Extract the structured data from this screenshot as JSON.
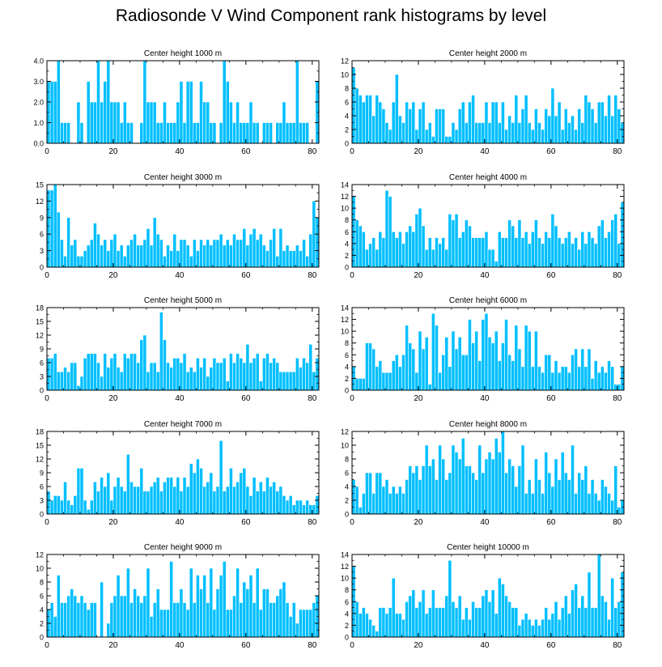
{
  "title": "Radiosonde V Wind Component rank histograms by level",
  "bar_color": "#00bfff",
  "chart_data": [
    {
      "type": "bar",
      "title": "Center height 1000 m",
      "xlabel": "",
      "ylabel": "",
      "xlim": [
        0,
        82
      ],
      "ylim": [
        0,
        4.0
      ],
      "xticks": [
        0,
        20,
        40,
        60,
        80
      ],
      "yticks": [
        0,
        1,
        2,
        3,
        4
      ],
      "yticklabels": [
        "0.0",
        "1.0",
        "2.0",
        "3.0",
        "4.0"
      ],
      "values": [
        3,
        3,
        3,
        4,
        1,
        1,
        1,
        0,
        0,
        2,
        1,
        0,
        3,
        2,
        2,
        4,
        2,
        3,
        4,
        2,
        2,
        2,
        1,
        2,
        1,
        1,
        0,
        0,
        1,
        4,
        2,
        2,
        2,
        1,
        1,
        2,
        1,
        1,
        1,
        2,
        3,
        1,
        3,
        3,
        1,
        1,
        3,
        2,
        2,
        1,
        1,
        0,
        1,
        4,
        3,
        2,
        1,
        2,
        1,
        1,
        1,
        2,
        1,
        1,
        0,
        1,
        1,
        1,
        0,
        1,
        1,
        2,
        1,
        1,
        1,
        4,
        1,
        1,
        1,
        0,
        0,
        3
      ]
    },
    {
      "type": "bar",
      "title": "Center height 2000 m",
      "xlabel": "",
      "ylabel": "",
      "xlim": [
        0,
        82
      ],
      "ylim": [
        0,
        12
      ],
      "xticks": [
        0,
        20,
        40,
        60,
        80
      ],
      "yticks": [
        0,
        2,
        4,
        6,
        8,
        10,
        12
      ],
      "yticklabels": [
        "0",
        "2",
        "4",
        "6",
        "8",
        "10",
        "12"
      ],
      "values": [
        11,
        8,
        7,
        6,
        7,
        7,
        4,
        7,
        6,
        5,
        3,
        2,
        6,
        10,
        4,
        3,
        6,
        5,
        6,
        2,
        5,
        6,
        2,
        3,
        1,
        5,
        5,
        5,
        1,
        1,
        3,
        2,
        5,
        6,
        3,
        6,
        7,
        3,
        3,
        3,
        6,
        3,
        6,
        6,
        3,
        6,
        2,
        4,
        3,
        7,
        3,
        5,
        7,
        3,
        2,
        5,
        3,
        2,
        5,
        4,
        8,
        4,
        6,
        2,
        5,
        3,
        4,
        2,
        5,
        3,
        7,
        6,
        5,
        3,
        6,
        6,
        4,
        7,
        4,
        7,
        5,
        3
      ]
    },
    {
      "type": "bar",
      "title": "Center height 3000 m",
      "xlabel": "",
      "ylabel": "",
      "xlim": [
        0,
        82
      ],
      "ylim": [
        0,
        15
      ],
      "xticks": [
        0,
        20,
        40,
        60,
        80
      ],
      "yticks": [
        0,
        3,
        6,
        9,
        12,
        15
      ],
      "yticklabels": [
        "0",
        "3",
        "6",
        "9",
        "12",
        "15"
      ],
      "values": [
        14,
        14,
        15,
        10,
        5,
        2,
        9,
        4,
        5,
        2,
        2,
        3,
        4,
        5,
        8,
        6,
        4,
        5,
        3,
        5,
        6,
        3,
        4,
        2,
        4,
        5,
        6,
        4,
        4,
        5,
        7,
        4,
        9,
        6,
        5,
        2,
        4,
        3,
        6,
        3,
        5,
        5,
        4,
        2,
        5,
        3,
        5,
        4,
        5,
        4,
        5,
        5,
        6,
        4,
        5,
        4,
        6,
        5,
        5,
        7,
        4,
        6,
        7,
        5,
        6,
        4,
        3,
        5,
        7,
        2,
        7,
        3,
        4,
        3,
        3,
        4,
        3,
        5,
        2,
        6,
        12,
        9
      ]
    },
    {
      "type": "bar",
      "title": "Center height 4000 m",
      "xlabel": "",
      "ylabel": "",
      "xlim": [
        0,
        82
      ],
      "ylim": [
        0,
        14
      ],
      "xticks": [
        0,
        20,
        40,
        60,
        80
      ],
      "yticks": [
        0,
        2,
        4,
        6,
        8,
        10,
        12,
        14
      ],
      "yticklabels": [
        "0",
        "2",
        "4",
        "6",
        "8",
        "10",
        "12",
        "14"
      ],
      "values": [
        12,
        8,
        7,
        6,
        3,
        4,
        5,
        3,
        6,
        5,
        13,
        12,
        6,
        5,
        6,
        4,
        6,
        7,
        6,
        9,
        10,
        7,
        3,
        5,
        3,
        5,
        4,
        5,
        3,
        9,
        8,
        9,
        5,
        6,
        8,
        7,
        5,
        5,
        5,
        5,
        6,
        3,
        3,
        1,
        6,
        5,
        5,
        8,
        7,
        5,
        8,
        5,
        6,
        4,
        6,
        8,
        5,
        4,
        6,
        5,
        9,
        7,
        5,
        4,
        5,
        6,
        4,
        5,
        3,
        6,
        4,
        6,
        5,
        4,
        7,
        8,
        5,
        6,
        8,
        9,
        4,
        11
      ]
    },
    {
      "type": "bar",
      "title": "Center height 5000 m",
      "xlabel": "",
      "ylabel": "",
      "xlim": [
        0,
        82
      ],
      "ylim": [
        0,
        18
      ],
      "xticks": [
        0,
        20,
        40,
        60,
        80
      ],
      "yticks": [
        0,
        3,
        6,
        9,
        12,
        15,
        18
      ],
      "yticklabels": [
        "0",
        "3",
        "6",
        "9",
        "12",
        "15",
        "18"
      ],
      "values": [
        7,
        7,
        8,
        4,
        4,
        5,
        4,
        6,
        6,
        1,
        3,
        7,
        8,
        8,
        8,
        6,
        3,
        8,
        5,
        7,
        8,
        5,
        4,
        8,
        7,
        8,
        8,
        6,
        11,
        12,
        4,
        6,
        6,
        4,
        17,
        11,
        6,
        5,
        7,
        7,
        6,
        8,
        4,
        5,
        4,
        7,
        5,
        7,
        3,
        5,
        7,
        6,
        6,
        7,
        2,
        8,
        6,
        8,
        7,
        6,
        10,
        6,
        7,
        8,
        2,
        7,
        8,
        6,
        7,
        6,
        4,
        4,
        4,
        4,
        4,
        7,
        5,
        7,
        6,
        10,
        4,
        7
      ]
    },
    {
      "type": "bar",
      "title": "Center height 6000 m",
      "xlabel": "",
      "ylabel": "",
      "xlim": [
        0,
        82
      ],
      "ylim": [
        0,
        14
      ],
      "xticks": [
        0,
        20,
        40,
        60,
        80
      ],
      "yticks": [
        0,
        2,
        4,
        6,
        8,
        10,
        12,
        14
      ],
      "yticklabels": [
        "0",
        "2",
        "4",
        "6",
        "8",
        "10",
        "12",
        "14"
      ],
      "values": [
        4,
        2,
        2,
        2,
        8,
        8,
        7,
        4,
        5,
        3,
        3,
        3,
        5,
        6,
        4,
        6,
        11,
        8,
        7,
        3,
        10,
        7,
        9,
        1,
        13,
        11,
        3,
        6,
        9,
        4,
        10,
        7,
        9,
        6,
        6,
        12,
        8,
        10,
        5,
        12,
        13,
        9,
        8,
        10,
        5,
        8,
        12,
        6,
        5,
        11,
        7,
        4,
        11,
        10,
        4,
        10,
        4,
        3,
        6,
        6,
        3,
        5,
        3,
        4,
        4,
        3,
        6,
        7,
        4,
        7,
        4,
        7,
        2,
        5,
        3,
        4,
        3,
        5,
        4,
        1,
        1,
        4
      ]
    },
    {
      "type": "bar",
      "title": "Center height 7000 m",
      "xlabel": "",
      "ylabel": "",
      "xlim": [
        0,
        82
      ],
      "ylim": [
        0,
        18
      ],
      "xticks": [
        0,
        20,
        40,
        60,
        80
      ],
      "yticks": [
        0,
        3,
        6,
        9,
        12,
        15,
        18
      ],
      "yticklabels": [
        "0",
        "3",
        "6",
        "9",
        "12",
        "15",
        "18"
      ],
      "values": [
        5,
        3,
        4,
        4,
        3,
        7,
        3,
        2,
        4,
        10,
        10,
        3,
        1,
        3,
        7,
        5,
        8,
        6,
        9,
        3,
        6,
        8,
        6,
        5,
        13,
        7,
        6,
        6,
        10,
        5,
        5,
        6,
        7,
        8,
        5,
        7,
        8,
        8,
        6,
        8,
        5,
        8,
        6,
        11,
        9,
        12,
        10,
        6,
        7,
        9,
        5,
        6,
        16,
        5,
        6,
        10,
        6,
        7,
        9,
        10,
        6,
        4,
        8,
        5,
        7,
        5,
        8,
        6,
        7,
        5,
        6,
        4,
        3,
        4,
        2,
        3,
        3,
        2,
        3,
        2,
        2,
        4
      ]
    },
    {
      "type": "bar",
      "title": "Center height 8000 m",
      "xlabel": "",
      "ylabel": "",
      "xlim": [
        0,
        82
      ],
      "ylim": [
        0,
        12
      ],
      "xticks": [
        0,
        20,
        40,
        60,
        80
      ],
      "yticks": [
        0,
        2,
        4,
        6,
        8,
        10,
        12
      ],
      "yticklabels": [
        "0",
        "2",
        "4",
        "6",
        "8",
        "10",
        "12"
      ],
      "values": [
        5,
        4,
        1,
        3,
        6,
        6,
        3,
        6,
        6,
        4,
        5,
        3,
        4,
        3,
        4,
        3,
        5,
        7,
        6,
        7,
        5,
        7,
        10,
        7,
        8,
        5,
        10,
        8,
        5,
        6,
        10,
        9,
        8,
        11,
        7,
        7,
        6,
        5,
        10,
        6,
        8,
        9,
        8,
        11,
        9,
        12,
        6,
        8,
        7,
        4,
        7,
        10,
        3,
        5,
        3,
        8,
        5,
        3,
        9,
        6,
        4,
        8,
        5,
        9,
        6,
        5,
        10,
        3,
        6,
        5,
        7,
        3,
        5,
        3,
        2,
        5,
        4,
        3,
        2,
        7,
        1,
        2
      ]
    },
    {
      "type": "bar",
      "title": "Center height 9000 m",
      "xlabel": "",
      "ylabel": "",
      "xlim": [
        0,
        82
      ],
      "ylim": [
        0,
        12
      ],
      "xticks": [
        0,
        20,
        40,
        60,
        80
      ],
      "yticks": [
        0,
        2,
        4,
        6,
        8,
        10,
        12
      ],
      "yticklabels": [
        "0",
        "2",
        "4",
        "6",
        "8",
        "10",
        "12"
      ],
      "values": [
        4,
        5,
        3,
        9,
        5,
        5,
        6,
        7,
        6,
        5,
        6,
        5,
        4,
        5,
        5,
        0,
        8,
        0,
        2,
        5,
        6,
        9,
        6,
        6,
        10,
        5,
        7,
        6,
        5,
        6,
        10,
        3,
        5,
        7,
        4,
        4,
        4,
        11,
        5,
        5,
        7,
        5,
        4,
        10,
        5,
        9,
        7,
        9,
        5,
        10,
        4,
        7,
        9,
        11,
        4,
        4,
        6,
        10,
        5,
        8,
        7,
        9,
        5,
        10,
        4,
        7,
        7,
        5,
        5,
        6,
        7,
        8,
        5,
        3,
        5,
        2,
        4,
        4,
        4,
        4,
        5,
        6
      ]
    },
    {
      "type": "bar",
      "title": "Center height 10000 m",
      "xlabel": "",
      "ylabel": "",
      "xlim": [
        0,
        82
      ],
      "ylim": [
        0,
        14
      ],
      "xticks": [
        0,
        20,
        40,
        60,
        80
      ],
      "yticks": [
        0,
        2,
        4,
        6,
        8,
        10,
        12,
        14
      ],
      "yticklabels": [
        "0",
        "2",
        "4",
        "6",
        "8",
        "10",
        "12",
        "14"
      ],
      "values": [
        12,
        6,
        4,
        5,
        4,
        3,
        2,
        1,
        5,
        5,
        4,
        5,
        10,
        4,
        4,
        3,
        6,
        7,
        8,
        5,
        6,
        8,
        4,
        5,
        8,
        5,
        5,
        5,
        7,
        13,
        6,
        5,
        7,
        3,
        5,
        3,
        6,
        5,
        5,
        7,
        8,
        6,
        8,
        4,
        10,
        9,
        7,
        6,
        5,
        5,
        2,
        3,
        4,
        3,
        2,
        3,
        2,
        3,
        5,
        3,
        4,
        6,
        3,
        5,
        7,
        4,
        8,
        9,
        5,
        7,
        5,
        11,
        5,
        5,
        14,
        7,
        6,
        3,
        10,
        5,
        6,
        11
      ]
    }
  ]
}
